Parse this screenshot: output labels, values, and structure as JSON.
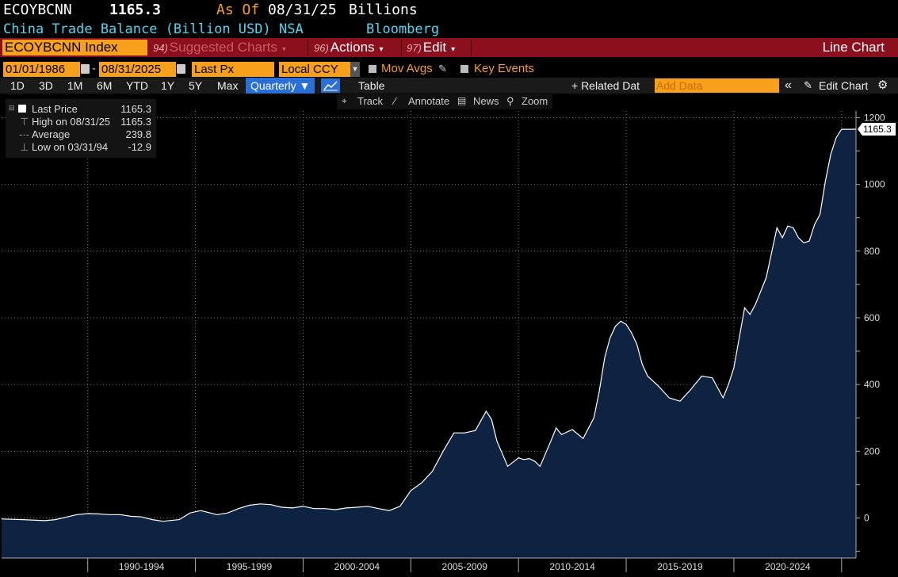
{
  "header": {
    "ticker": "ECOYBCNN",
    "last_value": "1165.3",
    "as_of_label": "As Of",
    "as_of_date": "08/31/25",
    "units": "Billions",
    "description": "China Trade Balance (Billion USD) NSA",
    "source": "Bloomberg"
  },
  "command_bar": {
    "security": "ECOYBCNN Index",
    "suggested_num": "94)",
    "suggested_label": "Suggested Charts",
    "actions_num": "96)",
    "actions_label": "Actions",
    "edit_num": "97)",
    "edit_label": "Edit",
    "chart_type": "Line Chart"
  },
  "options": {
    "start_date": "01/01/1986",
    "dash": "-",
    "end_date": "08/31/2025",
    "field": "Last Px",
    "currency": "Local CCY",
    "mov_avgs": "Mov Avgs",
    "key_events": "Key Events"
  },
  "toolbar": {
    "periods": [
      "1D",
      "3D",
      "1M",
      "6M",
      "YTD",
      "1Y",
      "5Y",
      "Max"
    ],
    "frequency": "Quarterly ▼",
    "table": "Table",
    "related_data": "+ Related Dat",
    "add_data_placeholder": "Add Data",
    "collapse": "«",
    "edit_chart": "Edit Chart"
  },
  "chart_toolbar": {
    "track": "Track",
    "annotate": "Annotate",
    "news": "News",
    "zoom": "Zoom"
  },
  "legend": {
    "last_price_label": "Last Price",
    "last_price_value": "1165.3",
    "high_label": "High on 08/31/25",
    "high_value": "1165.3",
    "average_label": "Average",
    "average_value": "239.8",
    "low_label": "Low on 03/31/94",
    "low_value": "-12.9"
  },
  "colors": {
    "accent_orange": "#f7a01b",
    "command_red": "#8b0f1d",
    "header_cyan": "#4fd7f0",
    "area_fill": "#0d2341",
    "line": "#ffffff"
  },
  "chart_data": {
    "type": "area",
    "ylim": [
      -120,
      1220
    ],
    "yticks": [
      0,
      200,
      400,
      600,
      800,
      1000,
      1200
    ],
    "xlim": [
      1986.0,
      2025.67
    ],
    "xticks": [
      {
        "label": "1990-1994",
        "start": 1990,
        "end": 1995
      },
      {
        "label": "1995-1999",
        "start": 1995,
        "end": 2000
      },
      {
        "label": "2000-2004",
        "start": 2000,
        "end": 2005
      },
      {
        "label": "2005-2009",
        "start": 2005,
        "end": 2010
      },
      {
        "label": "2010-2014",
        "start": 2010,
        "end": 2015
      },
      {
        "label": "2015-2019",
        "start": 2015,
        "end": 2020
      },
      {
        "label": "2020-2024",
        "start": 2020,
        "end": 2025
      }
    ],
    "last_label": "1165.3",
    "series": [
      {
        "x": [
          1986.0,
          1987.0,
          1988.0,
          1988.5,
          1989.5,
          1990.0,
          1990.5,
          1991.0,
          1991.5,
          1992.0,
          1992.5,
          1993.0,
          1993.5,
          1994.25,
          1994.75,
          1995.25,
          1996.0,
          1996.5,
          1997.0,
          1997.5,
          1998.0,
          1998.5,
          1999.0,
          1999.5,
          2000.0,
          2000.5,
          2001.0,
          2001.5,
          2002.0,
          2002.5,
          2003.0,
          2003.5,
          2004.0,
          2004.5,
          2005.0,
          2005.5,
          2006.0,
          2006.5,
          2007.0,
          2007.5,
          2008.0,
          2008.5,
          2008.75,
          2009.0,
          2009.5,
          2010.0,
          2010.25,
          2010.5,
          2010.75,
          2011.0,
          2011.5,
          2011.75,
          2012.0,
          2012.5,
          2013.0,
          2013.5,
          2013.75,
          2014.0,
          2014.25,
          2014.5,
          2014.75,
          2015.0,
          2015.25,
          2015.5,
          2015.75,
          2016.0,
          2016.5,
          2017.0,
          2017.5,
          2018.0,
          2018.5,
          2019.0,
          2019.5,
          2019.75,
          2020.0,
          2020.25,
          2020.5,
          2020.75,
          2021.0,
          2021.5,
          2022.0,
          2022.25,
          2022.5,
          2022.75,
          2023.0,
          2023.25,
          2023.5,
          2023.75,
          2024.0,
          2024.25,
          2024.5,
          2024.75,
          2025.0,
          2025.25,
          2025.5,
          2025.67
        ],
        "values": [
          -3,
          -5,
          -8,
          -5,
          10,
          13,
          12,
          10,
          10,
          5,
          3,
          -5,
          -10,
          -5,
          15,
          22,
          10,
          15,
          28,
          38,
          42,
          40,
          32,
          30,
          35,
          28,
          28,
          25,
          30,
          32,
          35,
          28,
          22,
          35,
          82,
          105,
          140,
          200,
          255,
          255,
          262,
          320,
          295,
          230,
          155,
          180,
          175,
          178,
          170,
          155,
          230,
          270,
          250,
          265,
          238,
          300,
          380,
          480,
          540,
          575,
          590,
          580,
          555,
          520,
          460,
          425,
          395,
          360,
          350,
          385,
          425,
          420,
          360,
          400,
          450,
          540,
          630,
          610,
          640,
          720,
          870,
          840,
          875,
          870,
          840,
          825,
          830,
          880,
          910,
          1010,
          1090,
          1140,
          1165,
          1165,
          1165,
          1165.3
        ]
      }
    ]
  }
}
